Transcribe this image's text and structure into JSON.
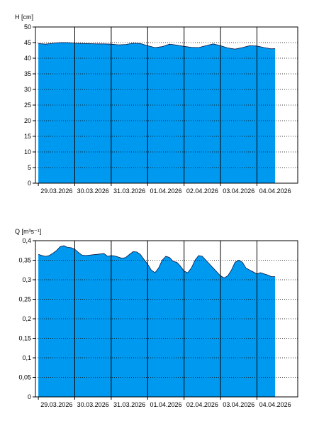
{
  "colors": {
    "fill": "#0099f0",
    "stroke": "#0a1540",
    "axis": "#000000",
    "grid": "#000000"
  },
  "chart_data": [
    {
      "type": "area",
      "ylabel": "H [cm]",
      "ylim": [
        0,
        50
      ],
      "yticks": [
        0,
        5,
        10,
        15,
        20,
        25,
        30,
        35,
        40,
        45,
        50
      ],
      "ytick_labels": [
        "0",
        "5",
        "10",
        "15",
        "20",
        "25",
        "30",
        "35",
        "40",
        "45",
        "50"
      ],
      "xlim": [
        -0.08,
        7.12
      ],
      "xtick_labels": [
        "29.03.2026",
        "30.03.2026",
        "31.03.2026",
        "01.04.2026",
        "02.04.2026",
        "03.04.2026",
        "04.04.2026"
      ],
      "grid": true,
      "x": [
        0,
        0.2,
        0.4,
        0.6,
        0.8,
        1.0,
        1.2,
        1.4,
        1.6,
        1.8,
        2.0,
        2.2,
        2.4,
        2.6,
        2.8,
        3.0,
        3.2,
        3.4,
        3.6,
        3.8,
        4.0,
        4.2,
        4.4,
        4.6,
        4.8,
        5.0,
        5.2,
        5.4,
        5.6,
        5.8,
        6.0,
        6.2,
        6.4,
        6.5
      ],
      "values": [
        44.7,
        44.5,
        44.8,
        45.0,
        45.0,
        44.8,
        44.7,
        44.7,
        44.6,
        44.6,
        44.5,
        44.3,
        44.4,
        44.8,
        44.7,
        44.0,
        43.4,
        43.7,
        44.5,
        44.2,
        43.8,
        43.5,
        43.4,
        44.0,
        44.6,
        44.0,
        43.3,
        42.9,
        43.4,
        44.0,
        43.9,
        43.4,
        43.0,
        43.1
      ]
    },
    {
      "type": "area",
      "ylabel": "Q [m³s⁻¹]",
      "ylim": [
        0,
        0.4
      ],
      "yticks": [
        0,
        0.05,
        0.1,
        0.15,
        0.2,
        0.25,
        0.3,
        0.35,
        0.4
      ],
      "ytick_labels": [
        "0",
        "0,05",
        "0,1",
        "0,15",
        "0,2",
        "0,25",
        "0,3",
        "0,35",
        "0,4"
      ],
      "xlim": [
        -0.08,
        7.12
      ],
      "xtick_labels": [
        "29.03.2026",
        "30.03.2026",
        "31.03.2026",
        "01.04.2026",
        "02.04.2026",
        "03.04.2026",
        "04.04.2026"
      ],
      "grid": true,
      "x": [
        0,
        0.1,
        0.2,
        0.3,
        0.4,
        0.5,
        0.6,
        0.7,
        0.8,
        0.9,
        1.0,
        1.1,
        1.2,
        1.3,
        1.4,
        1.5,
        1.6,
        1.7,
        1.8,
        1.9,
        2.0,
        2.1,
        2.2,
        2.3,
        2.4,
        2.5,
        2.6,
        2.7,
        2.8,
        2.9,
        3.0,
        3.1,
        3.2,
        3.3,
        3.4,
        3.5,
        3.6,
        3.7,
        3.8,
        3.9,
        4.0,
        4.1,
        4.2,
        4.3,
        4.4,
        4.5,
        4.6,
        4.7,
        4.8,
        4.9,
        5.0,
        5.1,
        5.2,
        5.3,
        5.4,
        5.5,
        5.6,
        5.7,
        5.8,
        5.9,
        6.0,
        6.1,
        6.2,
        6.3,
        6.4,
        6.5
      ],
      "values": [
        0.365,
        0.362,
        0.36,
        0.362,
        0.368,
        0.375,
        0.385,
        0.387,
        0.383,
        0.382,
        0.378,
        0.37,
        0.363,
        0.362,
        0.363,
        0.364,
        0.365,
        0.366,
        0.367,
        0.36,
        0.362,
        0.361,
        0.358,
        0.355,
        0.357,
        0.365,
        0.372,
        0.371,
        0.365,
        0.352,
        0.34,
        0.325,
        0.318,
        0.33,
        0.35,
        0.36,
        0.357,
        0.347,
        0.345,
        0.335,
        0.322,
        0.318,
        0.33,
        0.35,
        0.362,
        0.36,
        0.35,
        0.34,
        0.33,
        0.32,
        0.31,
        0.305,
        0.31,
        0.325,
        0.345,
        0.35,
        0.345,
        0.33,
        0.325,
        0.32,
        0.315,
        0.318,
        0.315,
        0.312,
        0.308,
        0.308
      ]
    }
  ]
}
